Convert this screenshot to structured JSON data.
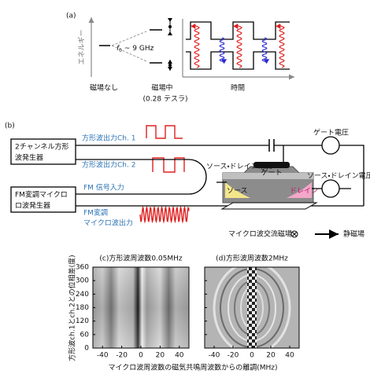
{
  "panel_a": {
    "label": "(a)",
    "energy_label": "エネルギー",
    "f0_symbol": "f",
    "f0_subscript": "0",
    "f0_value": " ~ 9 GHz",
    "no_field": "磁場なし",
    "in_field": "磁場中",
    "field_value": "(0.28 テスラ)",
    "time_label": "時間"
  },
  "panel_b": {
    "label": "(b)",
    "square_gen_line1": "2チャンネル方形",
    "square_gen_line2": "波発生器",
    "ch1_output": "方形波出力Ch. 1",
    "ch2_output": "方形波出力Ch. 2",
    "fm_input": "FM 信号入力",
    "fm_gen_line1": "FM変調マイクロ",
    "fm_gen_line2": "ロ波発生器",
    "fm_output_line1": "FM変調",
    "fm_output_line2": "マイクロ波出力",
    "gate_voltage": "ゲート電圧",
    "sd_current": "ソース・ドレイン電流",
    "sd_voltage": "ソース・ドレイン電圧",
    "gate": "ゲート",
    "source": "ソース",
    "drain": "ドレイン",
    "ac_field": "マイクロ波交流磁場",
    "static_field": "静磁場"
  },
  "shared_labels": {
    "xlabel": "マイクロ波周波数の磁気共鳴周波数からの離調(MHz)",
    "ylabel": "方形波ch.1とch.2との位相差(度)"
  },
  "chart_data": [
    {
      "type": "heatmap",
      "title": "(c)方形波周波数0.05MHz",
      "xlim": [
        -50,
        50
      ],
      "ylim": [
        0,
        360
      ],
      "xticks": [
        -40,
        -20,
        0,
        20,
        40
      ],
      "yticks": [
        0,
        60,
        120,
        180,
        240,
        300,
        360
      ]
    },
    {
      "type": "heatmap",
      "title": "(d)方形波周波数2MHz",
      "xlim": [
        -50,
        50
      ],
      "ylim": [
        0,
        360
      ],
      "xticks": [
        -40,
        -20,
        0,
        20,
        40
      ],
      "yticks": [
        0,
        60,
        120,
        180,
        240,
        300,
        360
      ]
    }
  ]
}
